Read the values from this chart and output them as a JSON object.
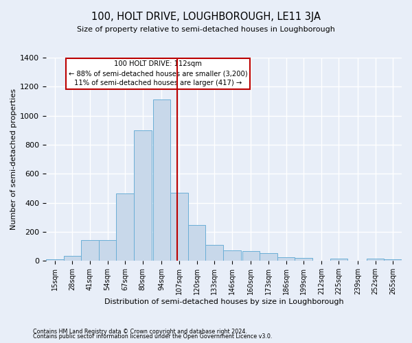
{
  "title": "100, HOLT DRIVE, LOUGHBOROUGH, LE11 3JA",
  "subtitle": "Size of property relative to semi-detached houses in Loughborough",
  "xlabel": "Distribution of semi-detached houses by size in Loughborough",
  "ylabel": "Number of semi-detached properties",
  "footnote1": "Contains HM Land Registry data © Crown copyright and database right 2024.",
  "footnote2": "Contains public sector information licensed under the Open Government Licence v3.0.",
  "bin_left_edges": [
    15,
    28,
    41,
    54,
    67,
    80,
    94,
    107,
    120,
    133,
    146,
    160,
    173,
    186,
    199,
    212,
    225,
    239,
    252,
    265
  ],
  "bin_heights": [
    10,
    35,
    145,
    145,
    465,
    900,
    1110,
    470,
    245,
    110,
    70,
    65,
    55,
    25,
    20,
    0,
    15,
    0,
    15,
    10
  ],
  "bar_color": "#c8d8ea",
  "bar_edge_color": "#6aaed6",
  "property_size": 112,
  "annotation_title": "100 HOLT DRIVE: 112sqm",
  "annotation_line1": "← 88% of semi-detached houses are smaller (3,200)",
  "annotation_line2": "11% of semi-detached houses are larger (417) →",
  "vline_color": "#bb0000",
  "annotation_box_edgecolor": "#bb0000",
  "ylim": [
    0,
    1400
  ],
  "yticks": [
    0,
    200,
    400,
    600,
    800,
    1000,
    1200,
    1400
  ],
  "bg_color": "#e8eef8",
  "plot_bg_color": "#e8eef8",
  "grid_color": "#ffffff",
  "bin_width": 13
}
